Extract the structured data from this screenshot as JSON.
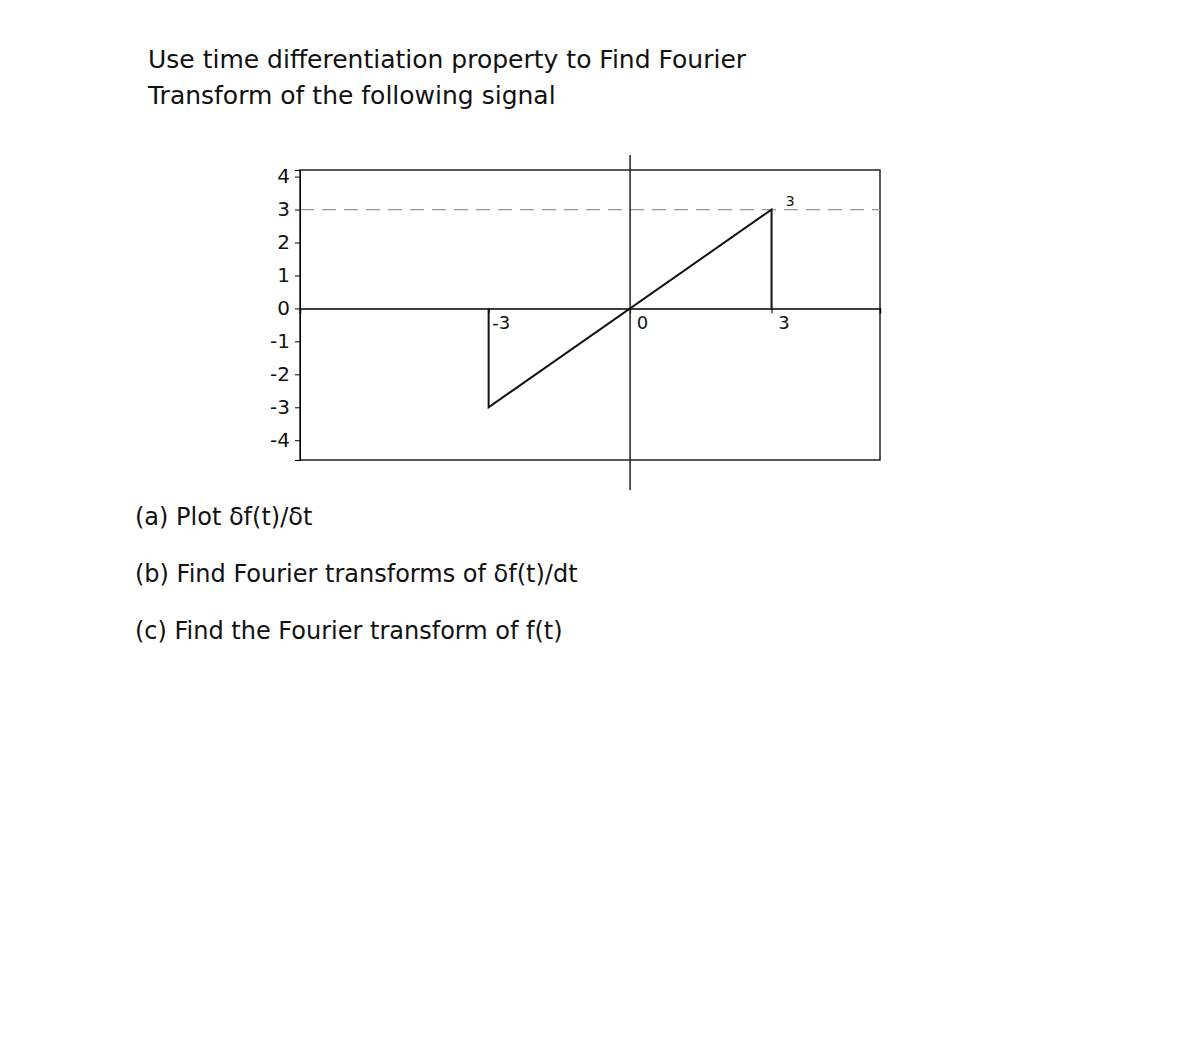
{
  "heading": [
    "Use time differentiation property to Find Fourier",
    "Transform of the following signal"
  ],
  "chart_data": {
    "type": "line",
    "x": [
      -3,
      -3,
      3,
      3
    ],
    "series": [
      {
        "values": [
          0,
          -3,
          3,
          0
        ],
        "color": "#111111"
      }
    ],
    "xlim": [
      -7,
      5.3
    ],
    "ylim": [
      -4.6,
      4.2
    ],
    "xticks": [
      -3,
      0,
      3
    ],
    "yticks": [
      -4,
      -3,
      -2,
      -1,
      0,
      1,
      2,
      3,
      4
    ],
    "reference_line": 3,
    "annotations": [
      {
        "text": "3",
        "x": 3.3,
        "y": 3.1
      }
    ]
  },
  "questions": [
    "(a) Plot δf(t)/δt",
    "(b) Find Fourier transforms of δf(t)/dt",
    "(c) Find the Fourier transform of f(t)"
  ]
}
